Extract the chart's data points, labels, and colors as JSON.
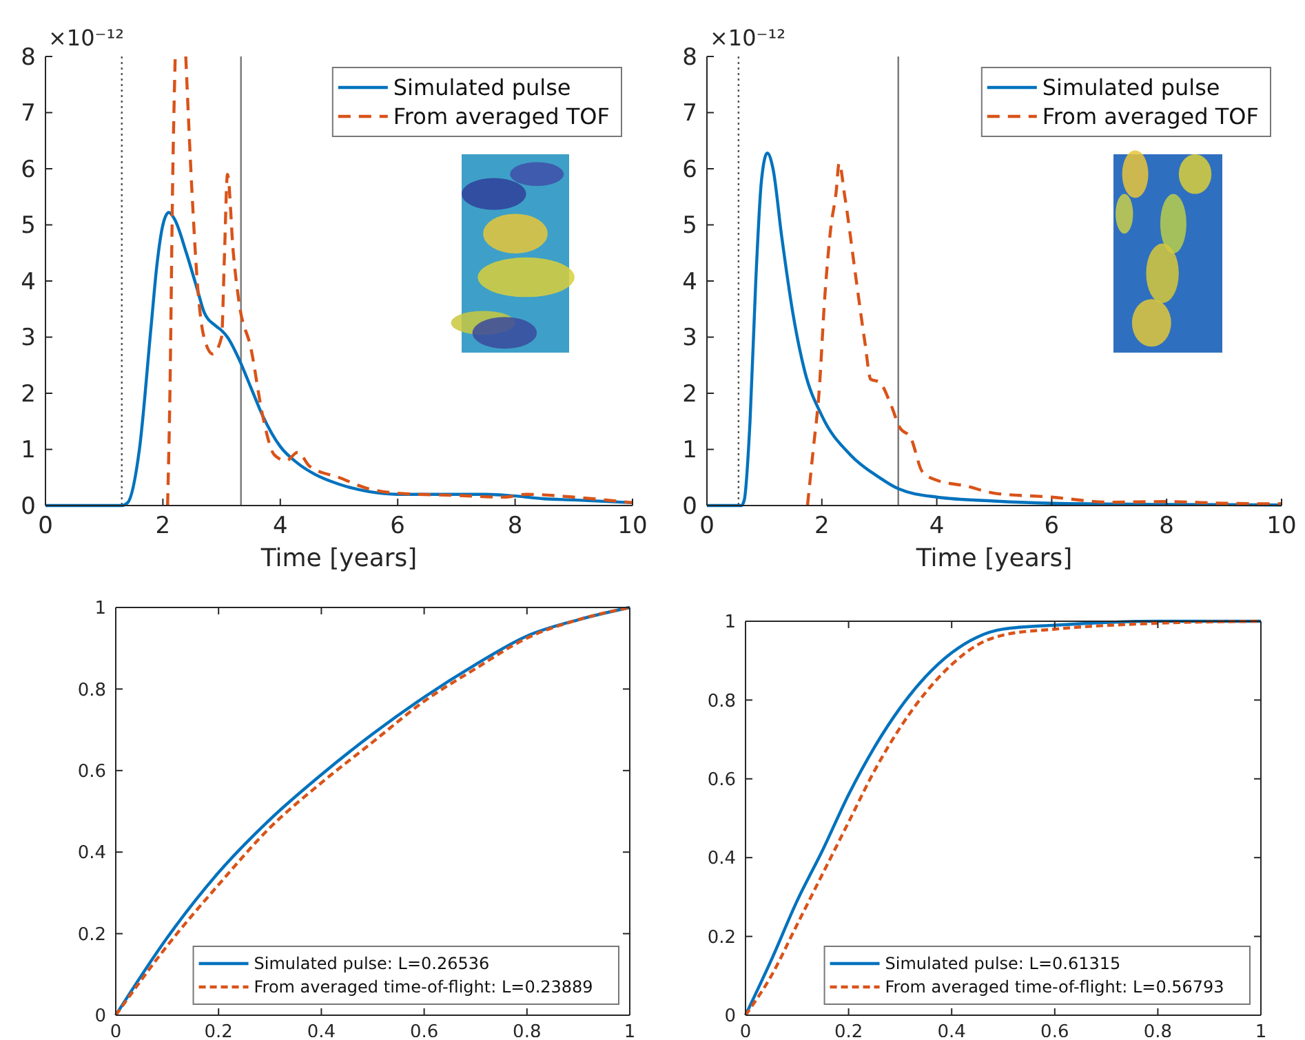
{
  "chart_data": [
    {
      "type": "line",
      "xlabel": "Time [years]",
      "ylabel": "×10⁻¹²",
      "xlim": [
        0,
        10
      ],
      "ylim": [
        0,
        8
      ],
      "xticks": [
        0,
        2,
        4,
        6,
        8,
        10
      ],
      "yticks": [
        0,
        1,
        2,
        3,
        4,
        5,
        6,
        7,
        8
      ],
      "legend": "top right",
      "grid": false,
      "ref_lines": [
        {
          "axis": "x",
          "value": 1.3,
          "color": "#555555",
          "line_style": "dotted"
        },
        {
          "axis": "x",
          "value": 3.33,
          "color": "#777777",
          "line_style": "solid"
        }
      ],
      "series": [
        {
          "name": "Simulated pulse",
          "color": "#0072bd",
          "line_style": "solid",
          "x": [
            0,
            1.3,
            1.4,
            1.6,
            1.8,
            1.9,
            2.0,
            2.1,
            2.2,
            2.4,
            2.6,
            2.7,
            2.9,
            3.0,
            3.1,
            3.3,
            3.5,
            3.7,
            4.0,
            4.3,
            4.6,
            5.0,
            5.5,
            6.0,
            7.0,
            7.5,
            8.0,
            8.5,
            9.0,
            10
          ],
          "values": [
            0,
            0,
            0.05,
            1.0,
            3.2,
            4.3,
            5.0,
            5.22,
            5.1,
            4.5,
            3.8,
            3.45,
            3.2,
            3.12,
            3.0,
            2.6,
            2.1,
            1.6,
            1.05,
            0.75,
            0.55,
            0.38,
            0.25,
            0.2,
            0.2,
            0.2,
            0.17,
            0.12,
            0.1,
            0.05
          ]
        },
        {
          "name": "From averaged TOF",
          "color": "#d95319",
          "line_style": "dashed",
          "x": [
            2.08,
            2.12,
            2.17,
            2.21,
            2.3,
            2.39,
            2.5,
            2.6,
            2.7,
            2.85,
            3.0,
            3.05,
            3.1,
            3.2,
            3.3,
            3.5,
            3.7,
            3.9,
            4.1,
            4.3,
            4.5,
            5.0,
            5.5,
            6.0,
            7.0,
            7.8,
            8.2,
            9.0,
            10
          ],
          "values": [
            0,
            2,
            6,
            8,
            null,
            8,
            5.5,
            3.8,
            3.0,
            2.7,
            3.0,
            4.5,
            5.9,
            4.5,
            3.6,
            2.8,
            1.6,
            0.9,
            0.8,
            0.95,
            0.7,
            0.5,
            0.3,
            0.22,
            0.18,
            0.15,
            0.2,
            0.15,
            0.05
          ]
        }
      ]
    },
    {
      "type": "line",
      "xlabel": "Time [years]",
      "ylabel": "×10⁻¹²",
      "xlim": [
        0,
        10
      ],
      "ylim": [
        0,
        8
      ],
      "xticks": [
        0,
        2,
        4,
        6,
        8,
        10
      ],
      "yticks": [
        0,
        1,
        2,
        3,
        4,
        5,
        6,
        7,
        8
      ],
      "legend": "top right",
      "grid": false,
      "ref_lines": [
        {
          "axis": "x",
          "value": 0.55,
          "color": "#555555",
          "line_style": "dotted"
        },
        {
          "axis": "x",
          "value": 3.33,
          "color": "#777777",
          "line_style": "solid"
        }
      ],
      "series": [
        {
          "name": "Simulated pulse",
          "color": "#0072bd",
          "line_style": "solid",
          "x": [
            0,
            0.6,
            0.65,
            0.75,
            0.85,
            0.95,
            1.05,
            1.15,
            1.3,
            1.5,
            1.7,
            2.0,
            2.5,
            3.0,
            3.33,
            4.0,
            5.0,
            6.0,
            8.0,
            10
          ],
          "values": [
            0,
            0,
            0.1,
            1.5,
            4.0,
            5.8,
            6.28,
            6.0,
            4.8,
            3.4,
            2.4,
            1.6,
            0.9,
            0.5,
            0.3,
            0.15,
            0.08,
            0.04,
            0.02,
            0.01
          ]
        },
        {
          "name": "From averaged TOF",
          "color": "#d95319",
          "line_style": "dashed",
          "x": [
            1.75,
            1.85,
            1.95,
            2.05,
            2.15,
            2.25,
            2.3,
            2.4,
            2.6,
            2.75,
            2.85,
            3.0,
            3.2,
            3.35,
            3.55,
            3.75,
            4.0,
            4.5,
            5.0,
            6.0,
            7.0,
            8.0,
            9.0,
            10
          ],
          "values": [
            0,
            1.0,
            2.0,
            3.7,
            4.9,
            5.6,
            6.1,
            5.5,
            4.0,
            2.9,
            2.25,
            2.2,
            1.8,
            1.4,
            1.2,
            0.6,
            0.45,
            0.35,
            0.22,
            0.15,
            0.06,
            0.07,
            0.04,
            0.03
          ]
        }
      ]
    },
    {
      "type": "line",
      "xlim": [
        0,
        1
      ],
      "ylim": [
        0,
        1
      ],
      "xticks": [
        0,
        0.2,
        0.4,
        0.6,
        0.8,
        1
      ],
      "yticks": [
        0,
        0.2,
        0.4,
        0.6,
        0.8,
        1
      ],
      "legend": "bottom right",
      "grid": false,
      "series": [
        {
          "name": "Simulated pulse: L=0.26536",
          "color": "#0072bd",
          "line_style": "solid",
          "x": [
            0,
            0.1,
            0.2,
            0.3,
            0.4,
            0.5,
            0.6,
            0.7,
            0.8,
            0.9,
            1
          ],
          "values": [
            0,
            0.19,
            0.35,
            0.48,
            0.59,
            0.69,
            0.78,
            0.86,
            0.93,
            0.97,
            1
          ]
        },
        {
          "name": "From averaged time-of-flight: L=0.23889",
          "color": "#d95319",
          "line_style": "dashed",
          "x": [
            0,
            0.1,
            0.2,
            0.3,
            0.4,
            0.5,
            0.6,
            0.7,
            0.8,
            0.9,
            1
          ],
          "values": [
            0,
            0.17,
            0.32,
            0.46,
            0.57,
            0.67,
            0.77,
            0.85,
            0.925,
            0.97,
            1
          ]
        }
      ]
    },
    {
      "type": "line",
      "xlim": [
        0,
        1
      ],
      "ylim": [
        0,
        1
      ],
      "xticks": [
        0,
        0.2,
        0.4,
        0.6,
        0.8,
        1
      ],
      "yticks": [
        0,
        0.2,
        0.4,
        0.6,
        0.8,
        1
      ],
      "legend": "bottom right",
      "grid": false,
      "series": [
        {
          "name": "Simulated pulse: L=0.61315",
          "color": "#0072bd",
          "line_style": "solid",
          "x": [
            0,
            0.05,
            0.1,
            0.15,
            0.2,
            0.25,
            0.3,
            0.35,
            0.4,
            0.45,
            0.5,
            0.6,
            0.8,
            1
          ],
          "values": [
            0,
            0.14,
            0.29,
            0.42,
            0.56,
            0.68,
            0.78,
            0.86,
            0.92,
            0.96,
            0.98,
            0.99,
            1,
            1
          ]
        },
        {
          "name": "From averaged time-of-flight: L=0.56793",
          "color": "#d95319",
          "line_style": "dashed",
          "x": [
            0,
            0.05,
            0.1,
            0.15,
            0.2,
            0.25,
            0.3,
            0.35,
            0.4,
            0.45,
            0.5,
            0.6,
            0.8,
            1
          ],
          "values": [
            0,
            0.1,
            0.23,
            0.36,
            0.49,
            0.62,
            0.73,
            0.82,
            0.89,
            0.94,
            0.965,
            0.98,
            0.995,
            1
          ]
        }
      ]
    }
  ]
}
